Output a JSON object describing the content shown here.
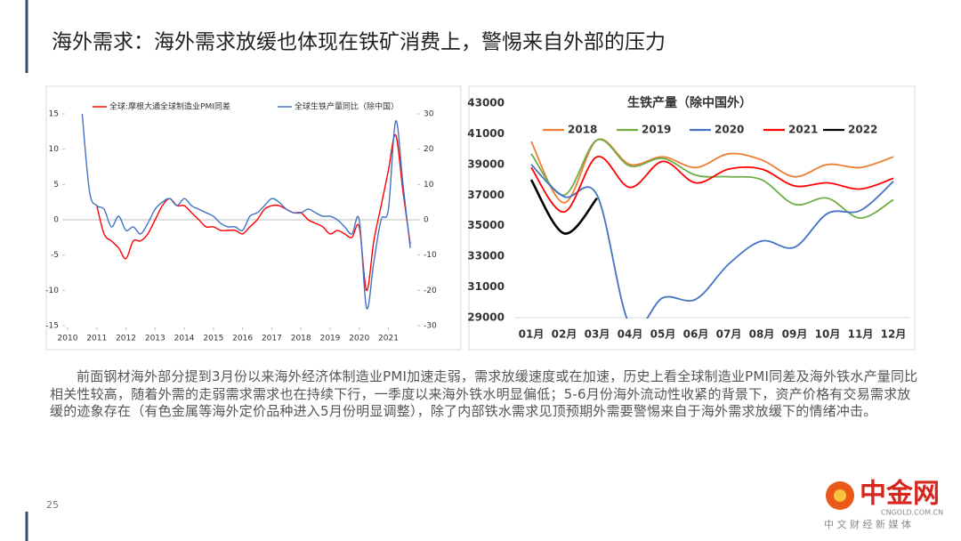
{
  "header": {
    "title": "海外需求：海外需求放缓也体现在铁矿消费上，警惕来自外部的压力"
  },
  "chart_data": [
    {
      "type": "line",
      "x": [
        2010.5,
        2010.75,
        2011.0,
        2011.25,
        2011.5,
        2011.75,
        2012.0,
        2012.25,
        2012.5,
        2012.75,
        2013.0,
        2013.25,
        2013.5,
        2013.75,
        2014.0,
        2014.25,
        2014.5,
        2014.75,
        2015.0,
        2015.25,
        2015.5,
        2015.75,
        2016.0,
        2016.25,
        2016.5,
        2016.75,
        2017.0,
        2017.25,
        2017.5,
        2017.75,
        2018.0,
        2018.25,
        2018.5,
        2018.75,
        2019.0,
        2019.25,
        2019.5,
        2019.75,
        2020.0,
        2020.25,
        2020.5,
        2020.75,
        2021.0,
        2021.25,
        2021.5,
        2021.75
      ],
      "series": [
        {
          "name": "全球:摩根大通全球制造业PMI同差",
          "color": "#ff0000",
          "values": [
            null,
            null,
            2,
            -2,
            -3,
            -4,
            -5.5,
            -3,
            -3,
            -2,
            0,
            2,
            3,
            2,
            2,
            1,
            0,
            -1,
            -1,
            -1.5,
            -1.5,
            -1.5,
            -2,
            -1,
            0,
            1.5,
            2,
            2,
            1.5,
            1,
            1,
            0,
            -0.5,
            -1,
            -2,
            -1.5,
            -2,
            -2.5,
            -1,
            -10,
            -3,
            2,
            7,
            12,
            4,
            -3.5
          ]
        },
        {
          "name": "全球生铁产量同比（除中国）",
          "color": "#4472c4",
          "axis": "y2",
          "values": [
            30,
            8,
            4,
            3,
            -2,
            1,
            -3,
            -2,
            -4,
            -1,
            3,
            5,
            6,
            4,
            6,
            4,
            3,
            2,
            1,
            -1,
            -2,
            -2,
            -3,
            1,
            2,
            4,
            6,
            5,
            3,
            2,
            2,
            3,
            2,
            1,
            1,
            0,
            -2,
            -4,
            0,
            -25,
            -12,
            0,
            3,
            28,
            10,
            -8
          ]
        }
      ],
      "xlim": [
        2010,
        2021.9
      ],
      "xticks": [
        2010,
        2011,
        2012,
        2013,
        2014,
        2015,
        2016,
        2017,
        2018,
        2019,
        2020,
        2021
      ],
      "ylim": [
        -15,
        15
      ],
      "yticks": [
        15,
        10,
        5,
        0,
        -5,
        -10,
        -15
      ],
      "y2lim": [
        -30,
        30
      ],
      "y2ticks": [
        30,
        20,
        10,
        0,
        -10,
        -20,
        -30
      ]
    },
    {
      "type": "line",
      "title": "生铁产量（除中国外）",
      "categories": [
        "01月",
        "02月",
        "03月",
        "04月",
        "05月",
        "06月",
        "07月",
        "08月",
        "09月",
        "10月",
        "11月",
        "12月"
      ],
      "series": [
        {
          "name": "2018",
          "color": "#ed7d31",
          "values": [
            40500,
            36500,
            40600,
            39000,
            39500,
            38800,
            39700,
            39300,
            38200,
            39000,
            38800,
            39500
          ]
        },
        {
          "name": "2019",
          "color": "#70ad47",
          "values": [
            39700,
            37000,
            40600,
            38900,
            39400,
            38300,
            38200,
            38000,
            36400,
            36800,
            35500,
            36700
          ]
        },
        {
          "name": "2020",
          "color": "#4472c4",
          "values": [
            39000,
            36900,
            37000,
            28500,
            30300,
            30200,
            32500,
            34000,
            33600,
            35800,
            36000,
            37900
          ]
        },
        {
          "name": "2021",
          "color": "#ff0000",
          "values": [
            38800,
            35900,
            39500,
            37500,
            39200,
            37800,
            38700,
            38700,
            37600,
            37800,
            37400,
            38100
          ]
        },
        {
          "name": "2022",
          "color": "#000000",
          "values": [
            38000,
            34500,
            36800,
            null,
            null,
            null,
            null,
            null,
            null,
            null,
            null,
            null
          ]
        }
      ],
      "ylim": [
        29000,
        43000
      ],
      "yticks": [
        43000,
        41000,
        39000,
        37000,
        35000,
        33000,
        31000,
        29000
      ]
    }
  ],
  "body": {
    "paragraph": "前面钢材海外部分提到3月份以来海外经济体制造业PMI加速走弱，需求放缓速度或在加速，历史上看全球制造业PMI同差及海外铁水产量同比相关性较高，随着外需的走弱需求需求也在持续下行，一季度以来海外铁水明显偏低；5-6月份海外流动性收紧的背景下，资产价格有交易需求放缓的迹象存在（有色金属等海外定价品种进入5月份明显调整），除了内部铁水需求见顶预期外需要警惕来自于海外需求放缓下的情绪冲击。"
  },
  "footer": {
    "page_number": "25",
    "logo": "中金网",
    "logo_url": "CNGOLD.COM.CN",
    "logo_slogan": "中 文 财 经 新 媒 体"
  }
}
